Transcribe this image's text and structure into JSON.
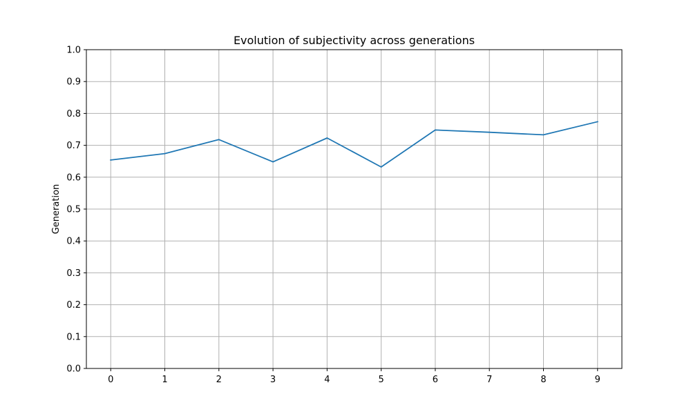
{
  "chart_data": {
    "type": "line",
    "title": "Evolution of subjectivity across generations",
    "xlabel": "",
    "ylabel": "Generation",
    "x": [
      0,
      1,
      2,
      3,
      4,
      5,
      6,
      7,
      8,
      9
    ],
    "series": [
      {
        "values": [
          0.654,
          0.674,
          0.718,
          0.648,
          0.723,
          0.632,
          0.748,
          0.741,
          0.733,
          0.774
        ],
        "color": "#1f77b4"
      }
    ],
    "xlim": [
      -0.45,
      9.45
    ],
    "ylim": [
      0,
      1
    ],
    "xticks": [
      "0",
      "1",
      "2",
      "3",
      "4",
      "5",
      "6",
      "7",
      "8",
      "9"
    ],
    "yticks": [
      "0.0",
      "0.1",
      "0.2",
      "0.3",
      "0.4",
      "0.5",
      "0.6",
      "0.7",
      "0.8",
      "0.9",
      "1.0"
    ],
    "grid": true,
    "grid_color": "#b0b0b0"
  }
}
